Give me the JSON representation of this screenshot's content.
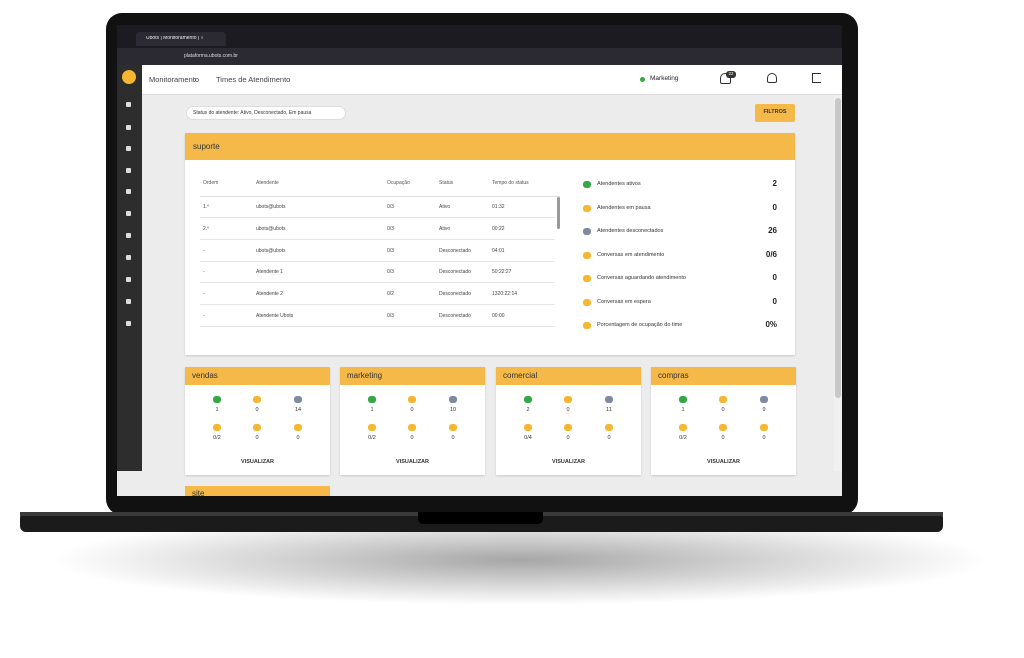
{
  "browser": {
    "tab_title": "Ubots | Monitoramento | T",
    "url": "plataforma.ubots.com.br"
  },
  "header": {
    "breadcrumb": [
      "Monitoramento",
      "Times de Atendimento"
    ],
    "channel": "Marketing",
    "notifications": 22
  },
  "filters": {
    "chip": "Status do atendente: Ativo, Desconectado, Em pausa",
    "button": "FILTROS"
  },
  "team": {
    "name": "suporte",
    "columns": [
      "Ordem",
      "Atendente",
      "Ocupação",
      "Status",
      "Tempo do status"
    ],
    "rows": [
      [
        "1.º",
        "ubots@ubots",
        "0/3",
        "Ativo",
        "01:32"
      ],
      [
        "2.º",
        "ubots@ubots",
        "0/3",
        "Ativo",
        "00:22"
      ],
      [
        "-",
        "ubots@ubots",
        "0/3",
        "Desconectado",
        "04:01"
      ],
      [
        "-",
        "Atendente 1",
        "0/3",
        "Desconectado",
        "50:22:27"
      ],
      [
        "-",
        "Atendente 2",
        "0/2",
        "Desconectado",
        "1320:22:14"
      ],
      [
        "-",
        "Atendente Ubots",
        "0/3",
        "Desconectado",
        "00:00"
      ]
    ],
    "stats": [
      {
        "label": "Atendentes ativos",
        "value": 2
      },
      {
        "label": "Atendentes em pausa",
        "value": 0
      },
      {
        "label": "Atendentes desconectados",
        "value": 26
      },
      {
        "label": "Conversas em atendimento",
        "value": "0/6"
      },
      {
        "label": "Conversas aguardando atendimento",
        "value": 0
      },
      {
        "label": "Conversas em espera",
        "value": 0
      },
      {
        "label": "Porcentagem de ocupação do time",
        "value": "0%"
      }
    ]
  },
  "teams": [
    {
      "name": "vendas",
      "metrics": [
        1,
        0,
        14,
        "0/2",
        0,
        0
      ]
    },
    {
      "name": "marketing",
      "metrics": [
        1,
        0,
        10,
        "0/2",
        0,
        0
      ]
    },
    {
      "name": "comercial",
      "metrics": [
        2,
        0,
        11,
        "0/4",
        0,
        0
      ]
    },
    {
      "name": "compras",
      "metrics": [
        1,
        0,
        9,
        "0/2",
        0,
        0
      ]
    }
  ],
  "team_action": "VISUALIZAR",
  "partial_team": "site"
}
